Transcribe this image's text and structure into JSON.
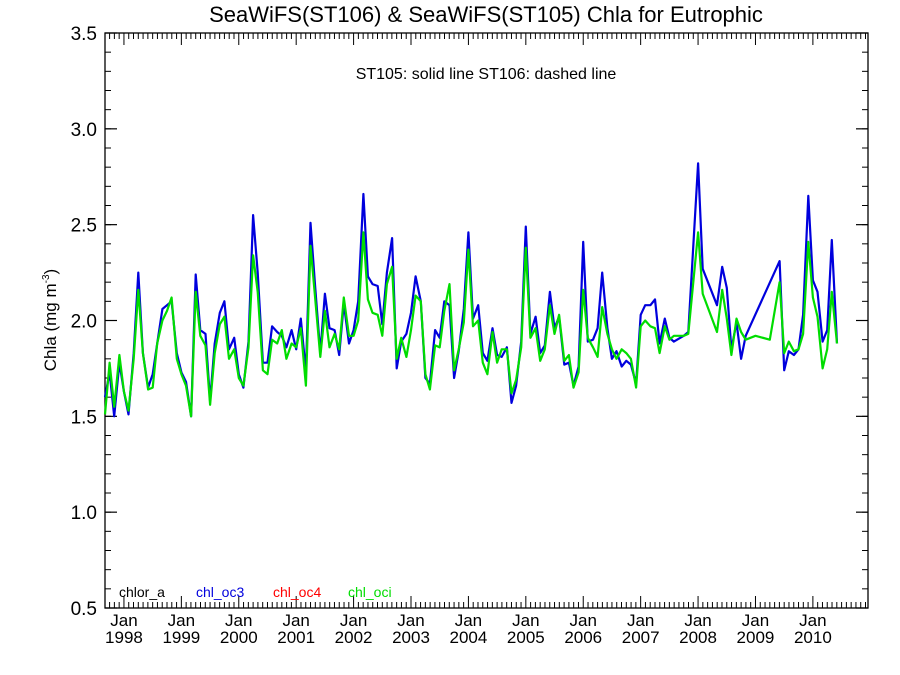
{
  "chart_data": {
    "type": "line",
    "title": "SeaWiFS(ST106) & SeaWiFS(ST105)  Chla for Eutrophic",
    "subtitle": "ST105: solid line   ST106: dashed line",
    "ylabel_main": "Chla (mg m",
    "ylabel_sup": "-3",
    "ylabel_close": ")",
    "xlabel": "",
    "ylim": [
      0.5,
      3.5
    ],
    "yticks": [
      "0.5",
      "1.0",
      "1.5",
      "2.0",
      "2.5",
      "3.0",
      "3.5"
    ],
    "xlim": [
      1997.67,
      2010.96
    ],
    "xticks_month": [
      "Jan",
      "Jan",
      "Jan",
      "Jan",
      "Jan",
      "Jan",
      "Jan",
      "Jan",
      "Jan",
      "Jan",
      "Jan",
      "Jan",
      "Jan"
    ],
    "xticks_year": [
      "1998",
      "1999",
      "2000",
      "2001",
      "2002",
      "2003",
      "2004",
      "2005",
      "2006",
      "2007",
      "2008",
      "2009",
      "2010"
    ],
    "grid": false,
    "legend_position": "bottom-left",
    "legend": [
      {
        "name": "chlor_a",
        "color": "#000000"
      },
      {
        "name": "chl_oc3",
        "color": "#0000dd"
      },
      {
        "name": "chl_oc4",
        "color": "#ff0000"
      },
      {
        "name": "chl_oci",
        "color": "#00dd00"
      }
    ],
    "series": [
      {
        "name": "chl_oc3",
        "color": "#0000dd",
        "points": [
          [
            1997.67,
            1.6
          ],
          [
            1997.75,
            1.73
          ],
          [
            1997.83,
            1.5
          ],
          [
            1997.92,
            1.78
          ],
          [
            1998.0,
            1.63
          ],
          [
            1998.08,
            1.51
          ],
          [
            1998.17,
            1.83
          ],
          [
            1998.25,
            2.25
          ],
          [
            1998.33,
            1.83
          ],
          [
            1998.42,
            1.65
          ],
          [
            1998.5,
            1.72
          ],
          [
            1998.58,
            1.88
          ],
          [
            1998.67,
            2.06
          ],
          [
            1998.75,
            2.08
          ],
          [
            1998.83,
            2.1
          ],
          [
            1998.92,
            1.83
          ],
          [
            1999.0,
            1.73
          ],
          [
            1999.08,
            1.68
          ],
          [
            1999.17,
            1.5
          ],
          [
            1999.25,
            2.24
          ],
          [
            1999.33,
            1.95
          ],
          [
            1999.42,
            1.93
          ],
          [
            1999.5,
            1.58
          ],
          [
            1999.58,
            1.88
          ],
          [
            1999.67,
            2.04
          ],
          [
            1999.75,
            2.1
          ],
          [
            1999.83,
            1.85
          ],
          [
            1999.92,
            1.91
          ],
          [
            2000.0,
            1.72
          ],
          [
            2000.08,
            1.65
          ],
          [
            2000.17,
            1.89
          ],
          [
            2000.25,
            2.55
          ],
          [
            2000.33,
            2.25
          ],
          [
            2000.42,
            1.78
          ],
          [
            2000.5,
            1.78
          ],
          [
            2000.58,
            1.97
          ],
          [
            2000.67,
            1.94
          ],
          [
            2000.75,
            1.92
          ],
          [
            2000.83,
            1.86
          ],
          [
            2000.92,
            1.95
          ],
          [
            2001.0,
            1.85
          ],
          [
            2001.08,
            2.01
          ],
          [
            2001.17,
            1.73
          ],
          [
            2001.25,
            2.51
          ],
          [
            2001.33,
            2.18
          ],
          [
            2001.42,
            1.83
          ],
          [
            2001.5,
            2.14
          ],
          [
            2001.58,
            1.96
          ],
          [
            2001.67,
            1.95
          ],
          [
            2001.75,
            1.82
          ],
          [
            2001.83,
            2.09
          ],
          [
            2001.92,
            1.88
          ],
          [
            2002.0,
            1.95
          ],
          [
            2002.08,
            2.1
          ],
          [
            2002.17,
            2.66
          ],
          [
            2002.25,
            2.23
          ],
          [
            2002.33,
            2.19
          ],
          [
            2002.42,
            2.18
          ],
          [
            2002.5,
            1.98
          ],
          [
            2002.58,
            2.25
          ],
          [
            2002.67,
            2.43
          ],
          [
            2002.75,
            1.75
          ],
          [
            2002.83,
            1.89
          ],
          [
            2002.92,
            1.93
          ],
          [
            2003.0,
            2.04
          ],
          [
            2003.08,
            2.23
          ],
          [
            2003.17,
            2.1
          ],
          [
            2003.25,
            1.7
          ],
          [
            2003.33,
            1.67
          ],
          [
            2003.42,
            1.95
          ],
          [
            2003.5,
            1.91
          ],
          [
            2003.58,
            2.1
          ],
          [
            2003.67,
            2.08
          ],
          [
            2003.75,
            1.7
          ],
          [
            2003.83,
            1.84
          ],
          [
            2003.92,
            2.06
          ],
          [
            2004.0,
            2.46
          ],
          [
            2004.08,
            2.01
          ],
          [
            2004.17,
            2.08
          ],
          [
            2004.25,
            1.83
          ],
          [
            2004.33,
            1.79
          ],
          [
            2004.42,
            1.96
          ],
          [
            2004.5,
            1.82
          ],
          [
            2004.58,
            1.81
          ],
          [
            2004.67,
            1.86
          ],
          [
            2004.75,
            1.57
          ],
          [
            2004.83,
            1.66
          ],
          [
            2004.92,
            1.89
          ],
          [
            2005.0,
            2.49
          ],
          [
            2005.08,
            1.93
          ],
          [
            2005.17,
            2.02
          ],
          [
            2005.25,
            1.83
          ],
          [
            2005.33,
            1.87
          ],
          [
            2005.42,
            2.15
          ],
          [
            2005.5,
            1.96
          ],
          [
            2005.58,
            2.02
          ],
          [
            2005.67,
            1.77
          ],
          [
            2005.75,
            1.78
          ],
          [
            2005.83,
            1.66
          ],
          [
            2005.92,
            1.76
          ],
          [
            2006.0,
            2.41
          ],
          [
            2006.08,
            1.89
          ],
          [
            2006.17,
            1.9
          ],
          [
            2006.25,
            1.96
          ],
          [
            2006.33,
            2.25
          ],
          [
            2006.42,
            1.96
          ],
          [
            2006.5,
            1.8
          ],
          [
            2006.58,
            1.84
          ],
          [
            2006.67,
            1.76
          ],
          [
            2006.75,
            1.79
          ],
          [
            2006.83,
            1.77
          ],
          [
            2006.92,
            1.67
          ],
          [
            2007.0,
            2.03
          ],
          [
            2007.08,
            2.08
          ],
          [
            2007.17,
            2.08
          ],
          [
            2007.25,
            2.11
          ],
          [
            2007.33,
            1.88
          ],
          [
            2007.42,
            2.01
          ],
          [
            2007.5,
            1.91
          ],
          [
            2007.58,
            1.89
          ],
          [
            2007.75,
            1.92
          ],
          [
            2007.83,
            1.94
          ],
          [
            2008.0,
            2.82
          ],
          [
            2008.08,
            2.27
          ],
          [
            2008.33,
            2.08
          ],
          [
            2008.42,
            2.28
          ],
          [
            2008.5,
            2.17
          ],
          [
            2008.58,
            1.85
          ],
          [
            2008.67,
            1.99
          ],
          [
            2008.75,
            1.8
          ],
          [
            2008.83,
            1.92
          ],
          [
            2009.42,
            2.31
          ],
          [
            2009.5,
            1.74
          ],
          [
            2009.58,
            1.84
          ],
          [
            2009.67,
            1.82
          ],
          [
            2009.75,
            1.85
          ],
          [
            2009.83,
            2.03
          ],
          [
            2009.92,
            2.65
          ],
          [
            2010.0,
            2.21
          ],
          [
            2010.08,
            2.15
          ],
          [
            2010.17,
            1.89
          ],
          [
            2010.25,
            1.95
          ],
          [
            2010.33,
            2.42
          ],
          [
            2010.42,
            1.88
          ]
        ]
      },
      {
        "name": "chl_oci",
        "color": "#00dd00",
        "points": [
          [
            1997.67,
            1.51
          ],
          [
            1997.75,
            1.78
          ],
          [
            1997.83,
            1.55
          ],
          [
            1997.92,
            1.82
          ],
          [
            1998.0,
            1.63
          ],
          [
            1998.08,
            1.53
          ],
          [
            1998.17,
            1.8
          ],
          [
            1998.25,
            2.16
          ],
          [
            1998.33,
            1.83
          ],
          [
            1998.42,
            1.64
          ],
          [
            1998.5,
            1.65
          ],
          [
            1998.58,
            1.88
          ],
          [
            1998.67,
            2.0
          ],
          [
            1998.75,
            2.05
          ],
          [
            1998.83,
            2.12
          ],
          [
            1998.92,
            1.8
          ],
          [
            1999.0,
            1.72
          ],
          [
            1999.08,
            1.66
          ],
          [
            1999.17,
            1.5
          ],
          [
            1999.25,
            2.15
          ],
          [
            1999.33,
            1.92
          ],
          [
            1999.42,
            1.87
          ],
          [
            1999.5,
            1.56
          ],
          [
            1999.58,
            1.83
          ],
          [
            1999.67,
            1.98
          ],
          [
            1999.75,
            2.02
          ],
          [
            1999.83,
            1.8
          ],
          [
            1999.92,
            1.85
          ],
          [
            2000.0,
            1.7
          ],
          [
            2000.08,
            1.66
          ],
          [
            2000.17,
            1.86
          ],
          [
            2000.25,
            2.34
          ],
          [
            2000.33,
            2.15
          ],
          [
            2000.42,
            1.74
          ],
          [
            2000.5,
            1.72
          ],
          [
            2000.58,
            1.9
          ],
          [
            2000.67,
            1.88
          ],
          [
            2000.75,
            1.95
          ],
          [
            2000.83,
            1.8
          ],
          [
            2000.92,
            1.88
          ],
          [
            2001.0,
            1.86
          ],
          [
            2001.08,
            1.96
          ],
          [
            2001.17,
            1.66
          ],
          [
            2001.25,
            2.39
          ],
          [
            2001.33,
            2.12
          ],
          [
            2001.42,
            1.81
          ],
          [
            2001.5,
            2.05
          ],
          [
            2001.58,
            1.86
          ],
          [
            2001.67,
            1.93
          ],
          [
            2001.75,
            1.85
          ],
          [
            2001.83,
            2.12
          ],
          [
            2001.92,
            1.92
          ],
          [
            2002.0,
            1.92
          ],
          [
            2002.08,
            2.0
          ],
          [
            2002.17,
            2.46
          ],
          [
            2002.25,
            2.11
          ],
          [
            2002.33,
            2.04
          ],
          [
            2002.42,
            2.03
          ],
          [
            2002.5,
            1.92
          ],
          [
            2002.58,
            2.19
          ],
          [
            2002.67,
            2.28
          ],
          [
            2002.75,
            1.8
          ],
          [
            2002.83,
            1.91
          ],
          [
            2002.92,
            1.81
          ],
          [
            2003.0,
            1.95
          ],
          [
            2003.08,
            2.13
          ],
          [
            2003.17,
            2.1
          ],
          [
            2003.25,
            1.72
          ],
          [
            2003.33,
            1.64
          ],
          [
            2003.42,
            1.87
          ],
          [
            2003.5,
            1.86
          ],
          [
            2003.58,
            2.05
          ],
          [
            2003.67,
            2.19
          ],
          [
            2003.75,
            1.74
          ],
          [
            2003.83,
            1.85
          ],
          [
            2003.92,
            1.99
          ],
          [
            2004.0,
            2.37
          ],
          [
            2004.08,
            1.97
          ],
          [
            2004.17,
            2.0
          ],
          [
            2004.25,
            1.78
          ],
          [
            2004.33,
            1.72
          ],
          [
            2004.42,
            1.94
          ],
          [
            2004.5,
            1.78
          ],
          [
            2004.58,
            1.85
          ],
          [
            2004.67,
            1.85
          ],
          [
            2004.75,
            1.62
          ],
          [
            2004.83,
            1.69
          ],
          [
            2004.92,
            1.86
          ],
          [
            2005.0,
            2.38
          ],
          [
            2005.08,
            1.91
          ],
          [
            2005.17,
            1.96
          ],
          [
            2005.25,
            1.79
          ],
          [
            2005.33,
            1.85
          ],
          [
            2005.42,
            2.08
          ],
          [
            2005.5,
            1.93
          ],
          [
            2005.58,
            2.03
          ],
          [
            2005.67,
            1.79
          ],
          [
            2005.75,
            1.82
          ],
          [
            2005.83,
            1.65
          ],
          [
            2005.92,
            1.73
          ],
          [
            2006.0,
            2.16
          ],
          [
            2006.08,
            1.91
          ],
          [
            2006.17,
            1.86
          ],
          [
            2006.25,
            1.81
          ],
          [
            2006.33,
            2.07
          ],
          [
            2006.42,
            1.93
          ],
          [
            2006.5,
            1.85
          ],
          [
            2006.58,
            1.8
          ],
          [
            2006.67,
            1.85
          ],
          [
            2006.75,
            1.83
          ],
          [
            2006.83,
            1.8
          ],
          [
            2006.92,
            1.65
          ],
          [
            2007.0,
            1.97
          ],
          [
            2007.08,
            2.0
          ],
          [
            2007.17,
            1.97
          ],
          [
            2007.25,
            1.96
          ],
          [
            2007.33,
            1.83
          ],
          [
            2007.42,
            1.97
          ],
          [
            2007.5,
            1.9
          ],
          [
            2007.58,
            1.92
          ],
          [
            2007.75,
            1.92
          ],
          [
            2007.83,
            1.93
          ],
          [
            2008.0,
            2.46
          ],
          [
            2008.08,
            2.14
          ],
          [
            2008.33,
            1.94
          ],
          [
            2008.42,
            2.16
          ],
          [
            2008.5,
            2.01
          ],
          [
            2008.58,
            1.82
          ],
          [
            2008.67,
            2.01
          ],
          [
            2008.75,
            1.94
          ],
          [
            2008.83,
            1.9
          ],
          [
            2009.0,
            1.92
          ],
          [
            2009.25,
            1.9
          ],
          [
            2009.42,
            2.2
          ],
          [
            2009.5,
            1.83
          ],
          [
            2009.58,
            1.89
          ],
          [
            2009.67,
            1.84
          ],
          [
            2009.75,
            1.85
          ],
          [
            2009.83,
            1.93
          ],
          [
            2009.92,
            2.41
          ],
          [
            2010.0,
            2.12
          ],
          [
            2010.08,
            2.02
          ],
          [
            2010.17,
            1.75
          ],
          [
            2010.25,
            1.85
          ],
          [
            2010.33,
            2.15
          ],
          [
            2010.42,
            1.88
          ]
        ]
      }
    ]
  }
}
